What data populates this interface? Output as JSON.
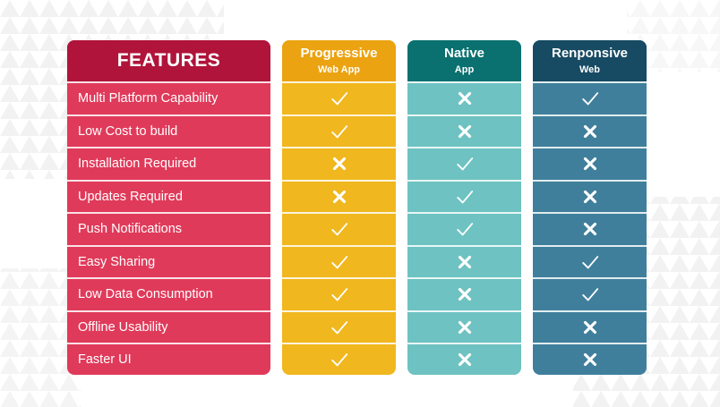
{
  "table": {
    "features_header": "FEATURES",
    "features": [
      "Multi Platform Capability",
      "Low Cost to build",
      "Installation Required",
      "Updates Required",
      "Push Notifications",
      "Easy Sharing",
      "Low Data Consumption",
      "Offline Usability",
      "Faster UI"
    ],
    "columns": [
      {
        "title": "Progressive",
        "subtitle": "Web App",
        "values": [
          "check",
          "check",
          "cross",
          "cross",
          "check",
          "check",
          "check",
          "check",
          "check"
        ]
      },
      {
        "title": "Native",
        "subtitle": "App",
        "values": [
          "cross",
          "cross",
          "check",
          "check",
          "check",
          "cross",
          "cross",
          "cross",
          "cross"
        ]
      },
      {
        "title": "Renponsive",
        "subtitle": "Web",
        "values": [
          "check",
          "cross",
          "cross",
          "cross",
          "cross",
          "check",
          "check",
          "cross",
          "cross"
        ]
      }
    ]
  },
  "icons": {
    "check": "check-icon",
    "cross": "cross-icon"
  },
  "colors": {
    "features_header": "#b0143a",
    "features_body": "#e03a5a",
    "pwa_header": "#eba312",
    "pwa_body": "#f0b71e",
    "native_header": "#0a7070",
    "native_body": "#6ec2c2",
    "responsive_header": "#174a63",
    "responsive_body": "#3f7f9c"
  }
}
